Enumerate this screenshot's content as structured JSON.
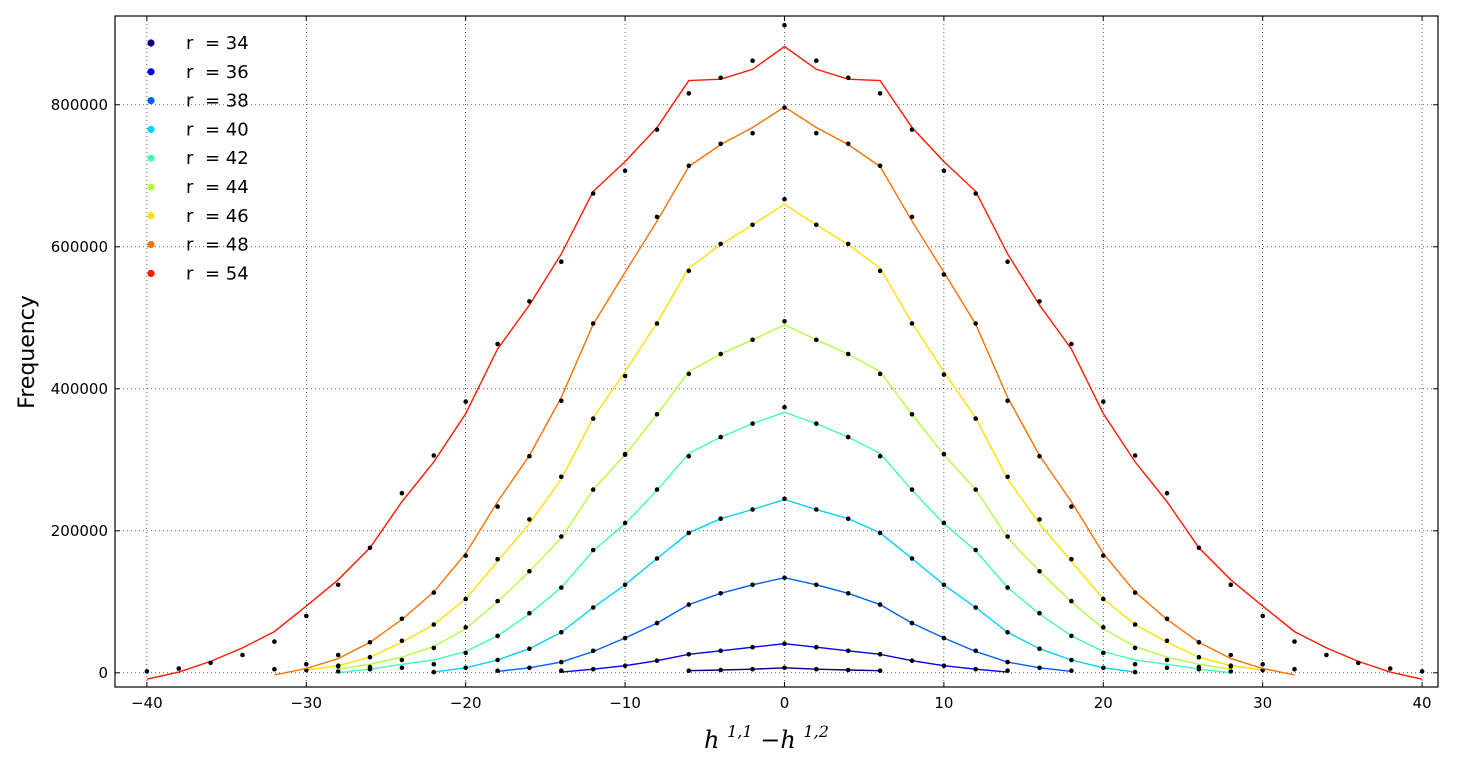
{
  "chart_data": {
    "type": "line",
    "title": "",
    "xlabel": "h^{1,1} −h^{1,2}",
    "xlabel_parts": {
      "h1": "h",
      "sup1": "1,1",
      "minus": " −h",
      "sup2": "1,2"
    },
    "ylabel": "Frequency",
    "xlim": [
      -42,
      41
    ],
    "ylim": [
      -20000,
      925000
    ],
    "xticks": [
      -40,
      -30,
      -20,
      -10,
      0,
      10,
      20,
      30,
      40
    ],
    "xtick_labels": [
      "−40",
      "−30",
      "−20",
      "−10",
      "0",
      "10",
      "20",
      "30",
      "40"
    ],
    "yticks": [
      0,
      200000,
      400000,
      600000,
      800000
    ],
    "ytick_labels": [
      "0",
      "200000",
      "400000",
      "600000",
      "800000"
    ],
    "grid": true,
    "legend_position": "top-left",
    "legend_prefix": "r",
    "series": [
      {
        "name": "= 34",
        "color": "#000080",
        "x": [
          -6,
          -4,
          -2,
          0,
          2,
          4,
          6
        ],
        "line": [
          3000,
          4000,
          5000,
          7000,
          5000,
          4000,
          3000
        ],
        "points": [
          3000,
          4000,
          5000,
          7000,
          5000,
          4000,
          3000
        ]
      },
      {
        "name": "= 36",
        "color": "#0000f0",
        "x": [
          -14,
          -12,
          -10,
          -8,
          -6,
          -4,
          -2,
          0,
          2,
          4,
          6,
          8,
          10,
          12,
          14
        ],
        "line": [
          1000,
          5000,
          10000,
          17000,
          26000,
          31000,
          36000,
          41000,
          36000,
          31000,
          26000,
          17000,
          10000,
          5000,
          1000
        ],
        "points": [
          3000,
          5000,
          10000,
          17000,
          26000,
          31000,
          36000,
          41000,
          36000,
          31000,
          26000,
          17000,
          10000,
          5000,
          3000
        ]
      },
      {
        "name": "= 38",
        "color": "#0060ff",
        "x": [
          -18,
          -16,
          -14,
          -12,
          -10,
          -8,
          -6,
          -4,
          -2,
          0,
          2,
          4,
          6,
          8,
          10,
          12,
          14,
          16,
          18
        ],
        "line": [
          2000,
          7000,
          15000,
          30000,
          49000,
          70000,
          96000,
          112000,
          124000,
          134000,
          124000,
          112000,
          96000,
          70000,
          49000,
          30000,
          15000,
          7000,
          2000
        ],
        "points": [
          3000,
          7000,
          15000,
          31000,
          49000,
          70000,
          96000,
          112000,
          124000,
          134000,
          124000,
          112000,
          96000,
          70000,
          49000,
          31000,
          15000,
          7000,
          3000
        ]
      },
      {
        "name": "= 40",
        "color": "#00d0ff",
        "x": [
          -22,
          -20,
          -18,
          -16,
          -14,
          -12,
          -10,
          -8,
          -6,
          -4,
          -2,
          0,
          2,
          4,
          6,
          8,
          10,
          12,
          14,
          16,
          18,
          20,
          22
        ],
        "line": [
          1000,
          7000,
          18000,
          34000,
          57000,
          92000,
          124000,
          161000,
          197000,
          217000,
          230000,
          244000,
          230000,
          217000,
          197000,
          161000,
          124000,
          92000,
          57000,
          34000,
          18000,
          7000,
          1000
        ],
        "points": [
          1000,
          7000,
          18000,
          34000,
          57000,
          92000,
          124000,
          161000,
          197000,
          217000,
          230000,
          245000,
          230000,
          217000,
          197000,
          161000,
          124000,
          92000,
          57000,
          34000,
          18000,
          7000,
          1000
        ]
      },
      {
        "name": "= 42",
        "color": "#40ffb0",
        "x": [
          -28,
          -26,
          -24,
          -22,
          -20,
          -18,
          -16,
          -14,
          -12,
          -10,
          -8,
          -6,
          -4,
          -2,
          0,
          2,
          4,
          6,
          8,
          10,
          12,
          14,
          16,
          18,
          20,
          22,
          24,
          26,
          28
        ],
        "line": [
          0,
          5000,
          12000,
          18000,
          30000,
          52000,
          83000,
          120000,
          172000,
          210000,
          257000,
          309000,
          332000,
          351000,
          367000,
          351000,
          332000,
          309000,
          257000,
          210000,
          172000,
          120000,
          83000,
          52000,
          30000,
          18000,
          12000,
          5000,
          0
        ],
        "points": [
          2000,
          5000,
          7000,
          12000,
          28000,
          52000,
          84000,
          120000,
          173000,
          211000,
          258000,
          305000,
          332000,
          351000,
          374000,
          351000,
          332000,
          305000,
          258000,
          211000,
          173000,
          120000,
          84000,
          52000,
          28000,
          12000,
          7000,
          5000,
          2000
        ]
      },
      {
        "name": "= 44",
        "color": "#b0ff40",
        "x": [
          -28,
          -26,
          -24,
          -22,
          -20,
          -18,
          -16,
          -14,
          -12,
          -10,
          -8,
          -6,
          -4,
          -2,
          0,
          2,
          4,
          6,
          8,
          10,
          12,
          14,
          16,
          18,
          20,
          22,
          24,
          26,
          28
        ],
        "line": [
          5000,
          12000,
          22000,
          37000,
          62000,
          100000,
          143000,
          190000,
          258000,
          307000,
          364000,
          424000,
          449000,
          469000,
          490000,
          469000,
          449000,
          424000,
          364000,
          307000,
          258000,
          190000,
          143000,
          100000,
          62000,
          37000,
          22000,
          12000,
          5000
        ],
        "points": [
          9000,
          8000,
          18000,
          35000,
          64000,
          101000,
          143000,
          192000,
          258000,
          308000,
          364000,
          421000,
          449000,
          469000,
          495000,
          469000,
          449000,
          421000,
          364000,
          308000,
          258000,
          192000,
          143000,
          101000,
          64000,
          35000,
          18000,
          8000,
          9000
        ]
      },
      {
        "name": "= 46",
        "color": "#ffe000",
        "x": [
          -30,
          -28,
          -26,
          -24,
          -22,
          -20,
          -18,
          -16,
          -14,
          -12,
          -10,
          -8,
          -6,
          -4,
          -2,
          0,
          2,
          4,
          6,
          8,
          10,
          12,
          14,
          16,
          18,
          20,
          22,
          24,
          26,
          28,
          30
        ],
        "line": [
          4000,
          10000,
          22000,
          43000,
          68000,
          104000,
          157000,
          210000,
          273000,
          359000,
          424000,
          493000,
          570000,
          603000,
          631000,
          660000,
          631000,
          603000,
          570000,
          493000,
          424000,
          359000,
          273000,
          210000,
          157000,
          104000,
          68000,
          43000,
          22000,
          10000,
          4000
        ],
        "points": [
          4000,
          10000,
          22000,
          45000,
          68000,
          104000,
          160000,
          216000,
          276000,
          358000,
          307000,
          492000,
          566000,
          604000,
          631000,
          667000,
          631000,
          604000,
          566000,
          492000,
          420000,
          358000,
          276000,
          216000,
          160000,
          104000,
          68000,
          45000,
          22000,
          10000,
          4000
        ]
      },
      {
        "name": "= 48",
        "color": "#ff7000",
        "x": [
          -32,
          -30,
          -28,
          -26,
          -24,
          -22,
          -20,
          -18,
          -16,
          -14,
          -12,
          -10,
          -8,
          -6,
          -4,
          -2,
          0,
          2,
          4,
          6,
          8,
          10,
          12,
          14,
          16,
          18,
          20,
          22,
          24,
          26,
          28,
          30,
          32
        ],
        "line": [
          -3000,
          6000,
          20000,
          43000,
          75000,
          114000,
          168000,
          241000,
          306000,
          388000,
          491000,
          564000,
          636000,
          713000,
          744000,
          768000,
          797000,
          768000,
          744000,
          713000,
          636000,
          564000,
          491000,
          388000,
          306000,
          241000,
          168000,
          114000,
          75000,
          43000,
          20000,
          6000,
          -3000
        ],
        "points": [
          5000,
          12000,
          25000,
          43000,
          76000,
          113000,
          165000,
          234000,
          305000,
          383000,
          492000,
          418000,
          642000,
          714000,
          745000,
          760000,
          796000,
          760000,
          745000,
          714000,
          642000,
          561000,
          492000,
          383000,
          305000,
          234000,
          165000,
          113000,
          76000,
          43000,
          25000,
          12000,
          5000
        ]
      },
      {
        "name": "= 54",
        "color": "#ff1a00",
        "x": [
          -40,
          -38,
          -36,
          -34,
          -32,
          -30,
          -28,
          -26,
          -24,
          -22,
          -20,
          -18,
          -16,
          -14,
          -12,
          -10,
          -8,
          -6,
          -4,
          -2,
          0,
          2,
          4,
          6,
          8,
          10,
          12,
          14,
          16,
          18,
          20,
          22,
          24,
          26,
          28,
          30,
          32,
          34,
          36,
          38,
          40
        ],
        "line": [
          -9000,
          1000,
          16000,
          35000,
          58000,
          94000,
          131000,
          176000,
          241000,
          297000,
          365000,
          456000,
          518000,
          590000,
          678000,
          720000,
          768000,
          834000,
          836000,
          850000,
          882000,
          850000,
          836000,
          834000,
          768000,
          720000,
          678000,
          590000,
          518000,
          456000,
          365000,
          297000,
          241000,
          176000,
          131000,
          94000,
          58000,
          35000,
          16000,
          1000,
          -9000
        ],
        "points": [
          2000,
          6000,
          14000,
          25000,
          44000,
          80000,
          124000,
          176000,
          253000,
          306000,
          382000,
          463000,
          523000,
          579000,
          675000,
          707000,
          765000,
          816000,
          838000,
          862000,
          912000,
          862000,
          838000,
          816000,
          765000,
          707000,
          675000,
          579000,
          523000,
          463000,
          382000,
          306000,
          253000,
          176000,
          124000,
          80000,
          44000,
          25000,
          14000,
          6000,
          2000
        ]
      }
    ]
  }
}
